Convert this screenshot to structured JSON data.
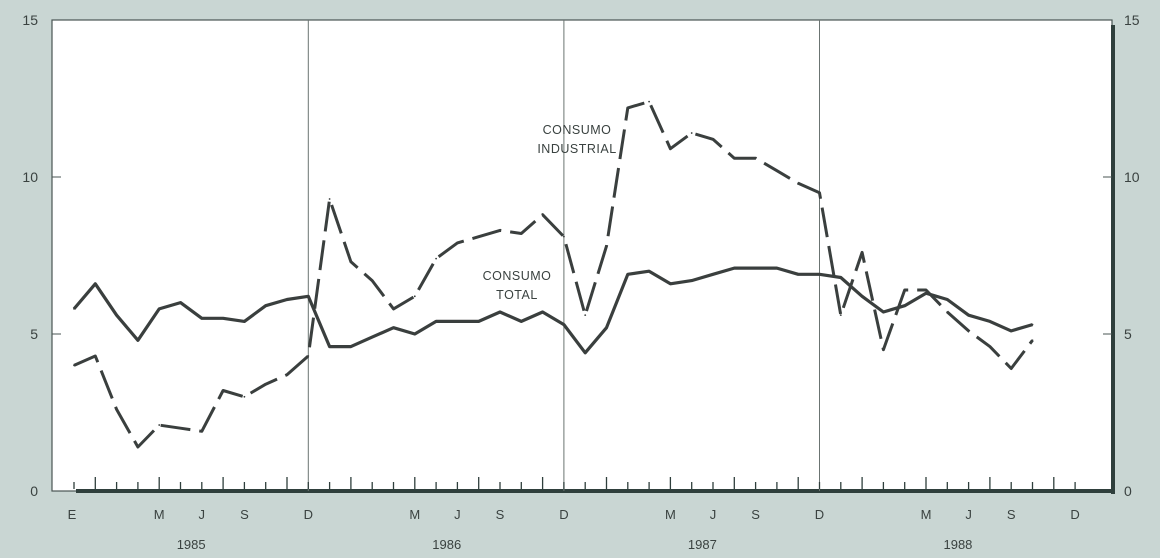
{
  "chart_data": {
    "type": "line",
    "ylim": [
      0,
      15
    ],
    "y_ticks": [
      "0",
      "5",
      "10",
      "15"
    ],
    "x_start": "1985-01",
    "x_end": "1988-12",
    "month_labels": [
      "E",
      "M",
      "J",
      "S",
      "D",
      "M",
      "J",
      "S",
      "D",
      "M",
      "J",
      "S",
      "D",
      "M",
      "J",
      "S",
      "D"
    ],
    "year_labels": [
      "1985",
      "1986",
      "1987",
      "1988"
    ],
    "grid": false,
    "series": [
      {
        "name": "CONSUMO TOTAL",
        "style": "solid",
        "x": [
          "1985-01",
          "1985-02",
          "1985-03",
          "1985-04",
          "1985-05",
          "1985-06",
          "1985-07",
          "1985-08",
          "1985-09",
          "1985-10",
          "1985-11",
          "1985-12",
          "1986-01",
          "1986-02",
          "1986-03",
          "1986-04",
          "1986-05",
          "1986-06",
          "1986-07",
          "1986-08",
          "1986-09",
          "1986-10",
          "1986-11",
          "1986-12",
          "1987-01",
          "1987-02",
          "1987-03",
          "1987-04",
          "1987-05",
          "1987-06",
          "1987-07",
          "1987-08",
          "1987-09",
          "1987-10",
          "1987-11",
          "1987-12",
          "1988-01",
          "1988-02",
          "1988-03",
          "1988-04",
          "1988-05",
          "1988-06",
          "1988-07",
          "1988-08",
          "1988-09",
          "1988-10"
        ],
        "values": [
          5.8,
          6.6,
          5.6,
          4.8,
          5.8,
          6.0,
          5.5,
          5.5,
          5.4,
          5.9,
          6.1,
          6.2,
          4.6,
          4.6,
          4.9,
          5.2,
          5.0,
          5.4,
          5.4,
          5.4,
          5.7,
          5.4,
          5.7,
          5.3,
          4.4,
          5.2,
          6.9,
          7.0,
          6.6,
          6.7,
          6.9,
          7.1,
          7.1,
          7.1,
          6.9,
          6.9,
          6.8,
          6.2,
          5.7,
          5.9,
          6.3,
          6.1,
          5.6,
          5.4,
          5.1,
          5.3
        ]
      },
      {
        "name": "CONSUMO INDUSTRIAL",
        "style": "dashed",
        "x": [
          "1985-01",
          "1985-02",
          "1985-03",
          "1985-04",
          "1985-05",
          "1985-06",
          "1985-07",
          "1985-08",
          "1985-09",
          "1985-10",
          "1985-11",
          "1985-12",
          "1986-01",
          "1986-02",
          "1986-03",
          "1986-04",
          "1986-05",
          "1986-06",
          "1986-07",
          "1986-08",
          "1986-09",
          "1986-10",
          "1986-11",
          "1986-12",
          "1987-01",
          "1987-02",
          "1987-03",
          "1987-04",
          "1987-05",
          "1987-06",
          "1987-07",
          "1987-08",
          "1987-09",
          "1987-10",
          "1987-11",
          "1987-12",
          "1988-01",
          "1988-02",
          "1988-03",
          "1988-04",
          "1988-05",
          "1988-06",
          "1988-07",
          "1988-08",
          "1988-09",
          "1988-10"
        ],
        "values": [
          4.0,
          4.3,
          2.6,
          1.4,
          2.1,
          2.0,
          1.9,
          3.2,
          3.0,
          3.4,
          3.7,
          4.3,
          9.3,
          7.3,
          6.7,
          5.8,
          6.2,
          7.4,
          7.9,
          8.1,
          8.3,
          8.2,
          8.8,
          8.1,
          5.6,
          7.8,
          12.2,
          12.4,
          10.9,
          11.4,
          11.2,
          10.6,
          10.6,
          10.2,
          9.8,
          9.5,
          5.6,
          7.6,
          4.5,
          6.4,
          6.4,
          5.7,
          5.1,
          4.6,
          3.9,
          4.8
        ]
      }
    ],
    "annotations": [
      {
        "text": "CONSUMO",
        "series": "CONSUMO INDUSTRIAL"
      },
      {
        "text": "INDUSTRIAL",
        "series": "CONSUMO INDUSTRIAL"
      },
      {
        "text": "CONSUMO",
        "series": "CONSUMO TOTAL"
      },
      {
        "text": "TOTAL",
        "series": "CONSUMO TOTAL"
      }
    ],
    "colors": {
      "background": "#c9d6d3",
      "plot_area": "#ffffff",
      "frame": "#4a5553",
      "axis_rule": "#2f3f3c",
      "line": "#3a3f3e",
      "text": "#3a4240"
    }
  }
}
